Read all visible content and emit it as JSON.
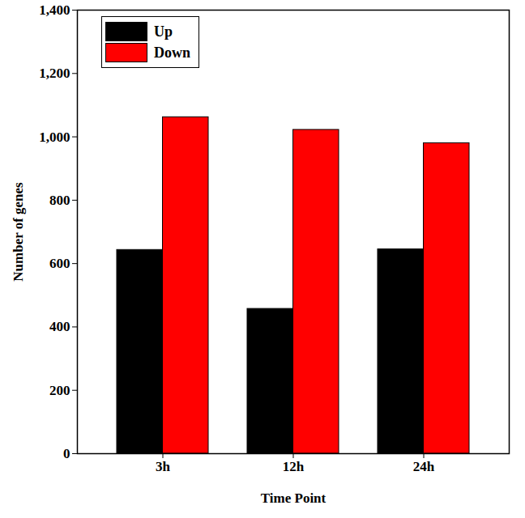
{
  "chart_data": {
    "type": "bar",
    "categories": [
      "3h",
      "12h",
      "24h"
    ],
    "series": [
      {
        "name": "Up",
        "color": "#000000",
        "values": [
          643,
          457,
          645
        ]
      },
      {
        "name": "Down",
        "color": "#ff0000",
        "values": [
          1062,
          1022,
          980
        ]
      }
    ],
    "x_label": "Time Point",
    "y_label": "Number of genes",
    "ylim": [
      0,
      1400
    ],
    "yticks": [
      0,
      200,
      400,
      600,
      800,
      1000,
      1200,
      1400
    ],
    "legend": "top-left",
    "grid": false
  }
}
